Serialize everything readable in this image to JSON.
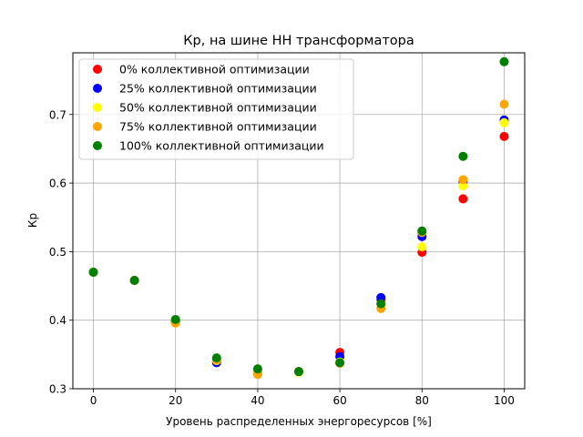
{
  "chart_data": {
    "type": "scatter",
    "title": "Кр, на шине НН трансформатора",
    "xlabel": "Уровень распределенных энергоресурсов [%]",
    "ylabel": "Кр",
    "xlim": [
      -5,
      105
    ],
    "ylim": [
      0.3,
      0.79
    ],
    "xticks": [
      0,
      20,
      40,
      60,
      80,
      100
    ],
    "yticks": [
      0.3,
      0.4,
      0.5,
      0.6,
      0.7
    ],
    "ytick_labels": [
      "0.3",
      "0.4",
      "0.5",
      "0.6",
      "0.7"
    ],
    "grid": true,
    "legend_position": "top-left",
    "x": [
      0,
      10,
      20,
      30,
      40,
      50,
      60,
      70,
      80,
      90,
      100
    ],
    "series": [
      {
        "name": "0% коллективной оптимизации",
        "color": "#ff0000",
        "values": [
          0.47,
          0.458,
          0.399,
          0.34,
          0.323,
          0.325,
          0.353,
          0.43,
          0.499,
          0.577,
          0.668
        ]
      },
      {
        "name": "25% коллективной оптимизации",
        "color": "#0000ff",
        "values": [
          0.47,
          0.458,
          0.398,
          0.338,
          0.322,
          0.325,
          0.347,
          0.433,
          0.522,
          0.602,
          0.692
        ]
      },
      {
        "name": "50% коллективной оптимизации",
        "color": "#ffff00",
        "values": [
          0.47,
          0.458,
          0.396,
          0.341,
          0.322,
          0.324,
          0.339,
          0.42,
          0.507,
          0.596,
          0.688
        ]
      },
      {
        "name": "75% коллективной оптимизации",
        "color": "#ffa500",
        "values": [
          0.47,
          0.458,
          0.396,
          0.342,
          0.321,
          0.325,
          0.337,
          0.417,
          0.528,
          0.605,
          0.715
        ]
      },
      {
        "name": "100% коллективной оптимизации",
        "color": "#008000",
        "values": [
          0.47,
          0.458,
          0.401,
          0.345,
          0.329,
          0.325,
          0.338,
          0.424,
          0.53,
          0.639,
          0.777
        ]
      }
    ]
  }
}
